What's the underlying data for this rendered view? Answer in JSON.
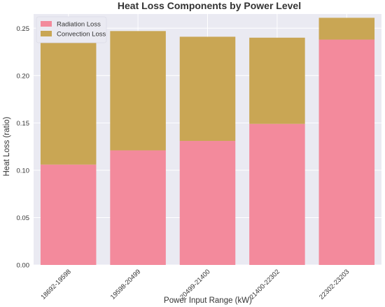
{
  "chart_data": {
    "type": "bar",
    "stacked": true,
    "title": "Heat Loss Components by Power Level",
    "xlabel": "Power Input Range (kW)",
    "ylabel": "Heat Loss (ratio)",
    "categories": [
      "18692-19598",
      "19598-20499",
      "20499-21400",
      "21400-22302",
      "22302-23203"
    ],
    "series": [
      {
        "name": "Radiation Loss",
        "color": "#f38a9c",
        "values": [
          0.106,
          0.121,
          0.131,
          0.149,
          0.238
        ]
      },
      {
        "name": "Convection Loss",
        "color": "#c9a654",
        "values": [
          0.143,
          0.126,
          0.11,
          0.091,
          0.023
        ]
      }
    ],
    "ylim": [
      0,
      0.265
    ],
    "yticks": [
      0.0,
      0.05,
      0.1,
      0.15,
      0.2,
      0.25
    ],
    "ytick_labels": [
      "0.00",
      "0.05",
      "0.10",
      "0.15",
      "0.20",
      "0.25"
    ],
    "grid": true,
    "legend_position": "top-left",
    "plot_background": "#eaeaf2"
  }
}
